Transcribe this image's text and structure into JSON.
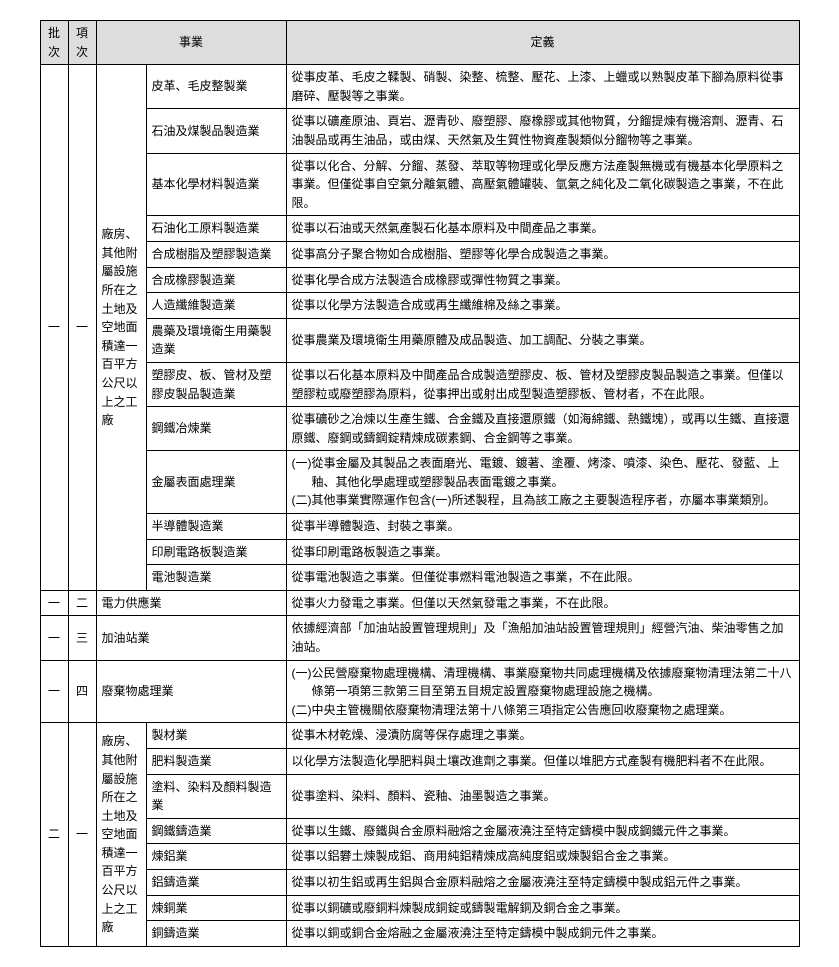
{
  "headers": {
    "batch": "批次",
    "item": "項次",
    "business": "事業",
    "definition": "定義"
  },
  "sec1": {
    "batch": "一",
    "item": "一",
    "scope": "廠房、其他附屬設施所在之土地及空地面積達一百平方公尺以上之工廠",
    "rows": [
      {
        "biz": "皮革、毛皮整製業",
        "def": "從事皮革、毛皮之鞣製、硝製、染整、梳整、壓花、上漆、上蠟或以熟製皮革下腳為原料從事磨碎、壓製等之事業。"
      },
      {
        "biz": "石油及煤製品製造業",
        "def": "從事以礦產原油、頁岩、瀝青砂、廢塑膠、廢橡膠或其他物質，分餾提煉有機溶劑、瀝青、石油製品或再生油品，或由煤、天然氣及生質性物資產製類似分餾物等之事業。"
      },
      {
        "biz": "基本化學材料製造業",
        "def": "從事以化合、分解、分餾、蒸發、萃取等物理或化學反應方法產製無機或有機基本化學原料之事業。但僅從事自空氣分離氣體、高壓氣體罐裝、氫氣之純化及二氧化碳製造之事業，不在此限。"
      },
      {
        "biz": "石油化工原料製造業",
        "def": "從事以石油或天然氣產製石化基本原料及中間產品之事業。"
      },
      {
        "biz": "合成樹脂及塑膠製造業",
        "def": "從事高分子聚合物如合成樹脂、塑膠等化學合成製造之事業。"
      },
      {
        "biz": "合成橡膠製造業",
        "def": "從事化學合成方法製造合成橡膠或彈性物質之事業。"
      },
      {
        "biz": "人造纖維製造業",
        "def": "從事以化學方法製造合成或再生纖維棉及絲之事業。"
      },
      {
        "biz": "農藥及環境衛生用藥製造業",
        "def": "從事農業及環境衛生用藥原體及成品製造、加工調配、分裝之事業。"
      },
      {
        "biz": "塑膠皮、板、管材及塑膠皮製品製造業",
        "def": "從事以石化基本原料及中間產品合成製造塑膠皮、板、管材及塑膠皮製品製造之事業。但僅以塑膠粒或廢塑膠為原料，從事押出或射出成型製造塑膠板、管材者，不在此限。"
      },
      {
        "biz": "鋼鐵冶煉業",
        "def": "從事礦砂之冶煉以生產生鐵、合金鐵及直接還原鐵（如海綿鐵、熱鐵塊），或再以生鐵、直接還原鐵、廢鋼或鑄鋼錠精煉成碳素鋼、合金鋼等之事業。"
      },
      {
        "biz": "金屬表面處理業",
        "def_multi": [
          {
            "num": "(一)",
            "txt": "從事金屬及其製品之表面磨光、電鍍、鍍著、塗覆、烤漆、噴漆、染色、壓花、發藍、上釉、其他化學處理或塑膠製品表面電鍍之事業。"
          },
          {
            "num": "(二)",
            "txt": "其他事業實際運作包含(一)所述製程，且為該工廠之主要製造程序者，亦屬本事業類別。"
          }
        ]
      },
      {
        "biz": "半導體製造業",
        "def": "從事半導體製造、封裝之事業。"
      },
      {
        "biz": "印刷電路板製造業",
        "def": "從事印刷電路板製造之事業。"
      },
      {
        "biz": "電池製造業",
        "def": "從事電池製造之事業。但僅從事燃料電池製造之事業，不在此限。"
      }
    ]
  },
  "sec2": {
    "batch": "一",
    "item": "二",
    "biz": "電力供應業",
    "def": "從事火力發電之事業。但僅以天然氣發電之事業，不在此限。"
  },
  "sec3": {
    "batch": "一",
    "item": "三",
    "biz": "加油站業",
    "def": "依據經濟部「加油站設置管理規則」及「漁船加油站設置管理規則」經營汽油、柴油零售之加油站。"
  },
  "sec4": {
    "batch": "一",
    "item": "四",
    "biz": "廢棄物處理業",
    "def_multi": [
      {
        "num": "(一)",
        "txt": "公民營廢棄物處理機構、清理機構、事業廢棄物共同處理機構及依據廢棄物清理法第二十八條第一項第三款第三目至第五目規定設置廢棄物處理設施之機構。"
      },
      {
        "num": "(二)",
        "txt": "中央主管機關依廢棄物清理法第十八條第三項指定公告應回收廢棄物之處理業。"
      }
    ]
  },
  "sec5": {
    "batch": "二",
    "item": "一",
    "scope": "廠房、其他附屬設施所在之土地及空地面積達一百平方公尺以上之工廠",
    "rows": [
      {
        "biz": "製材業",
        "def": "從事木材乾燥、浸漬防腐等保存處理之事業。"
      },
      {
        "biz": "肥料製造業",
        "def": "以化學方法製造化學肥料與土壤改進劑之事業。但僅以堆肥方式產製有機肥料者不在此限。"
      },
      {
        "biz": "塗料、染料及顏料製造業",
        "def": "從事塗料、染料、顏料、瓷釉、油墨製造之事業。"
      },
      {
        "biz": "鋼鐵鑄造業",
        "def": "從事以生鐵、廢鐵與合金原料融熔之金屬液澆注至特定鑄模中製成鋼鐵元件之事業。"
      },
      {
        "biz": "煉鋁業",
        "def": "從事以鋁礬土煉製成鋁、商用純鋁精煉成高純度鋁或煉製鋁合金之事業。"
      },
      {
        "biz": "鋁鑄造業",
        "def": "從事以初生鋁或再生鋁與合金原料融熔之金屬液澆注至特定鑄模中製成鋁元件之事業。"
      },
      {
        "biz": "煉銅業",
        "def": "從事以銅礦或廢銅料煉製成銅錠或鑄製電解銅及銅合金之事業。"
      },
      {
        "biz": "銅鑄造業",
        "def": "從事以銅或銅合金熔融之金屬液澆注至特定鑄模中製成銅元件之事業。"
      }
    ]
  }
}
